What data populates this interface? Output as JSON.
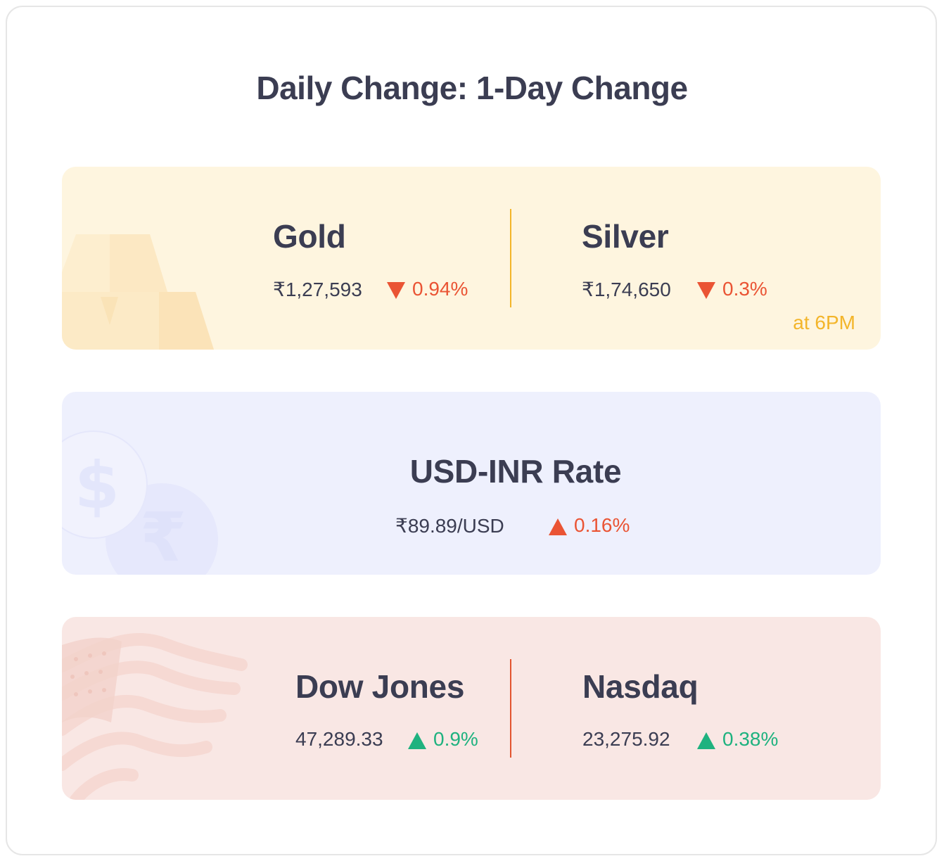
{
  "title": "Daily Change: 1-Day Change",
  "colors": {
    "down": "#ea5434",
    "up_green": "#1fb27f",
    "accent_gold": "#f3b52a",
    "text": "#3b3d52"
  },
  "metals": {
    "gold": {
      "name": "Gold",
      "price": "₹1,27,593",
      "change": "0.94%",
      "direction": "down"
    },
    "silver": {
      "name": "Silver",
      "price": "₹1,74,650",
      "change": "0.3%",
      "direction": "down"
    },
    "time_note": "at 6PM"
  },
  "fx": {
    "name": "USD-INR Rate",
    "price": "₹89.89/USD",
    "change": "0.16%",
    "direction": "up"
  },
  "indices": {
    "dow": {
      "name": "Dow Jones",
      "price": "47,289.33",
      "change": "0.9%",
      "direction": "up"
    },
    "nasdaq": {
      "name": "Nasdaq",
      "price": "23,275.92",
      "change": "0.38%",
      "direction": "up"
    }
  },
  "icons": {
    "gold_deco": "gold-bars-icon",
    "fx_deco": "currency-coins-icon",
    "idx_deco": "us-flag-icon",
    "down": "triangle-down-icon",
    "up": "triangle-up-icon"
  }
}
